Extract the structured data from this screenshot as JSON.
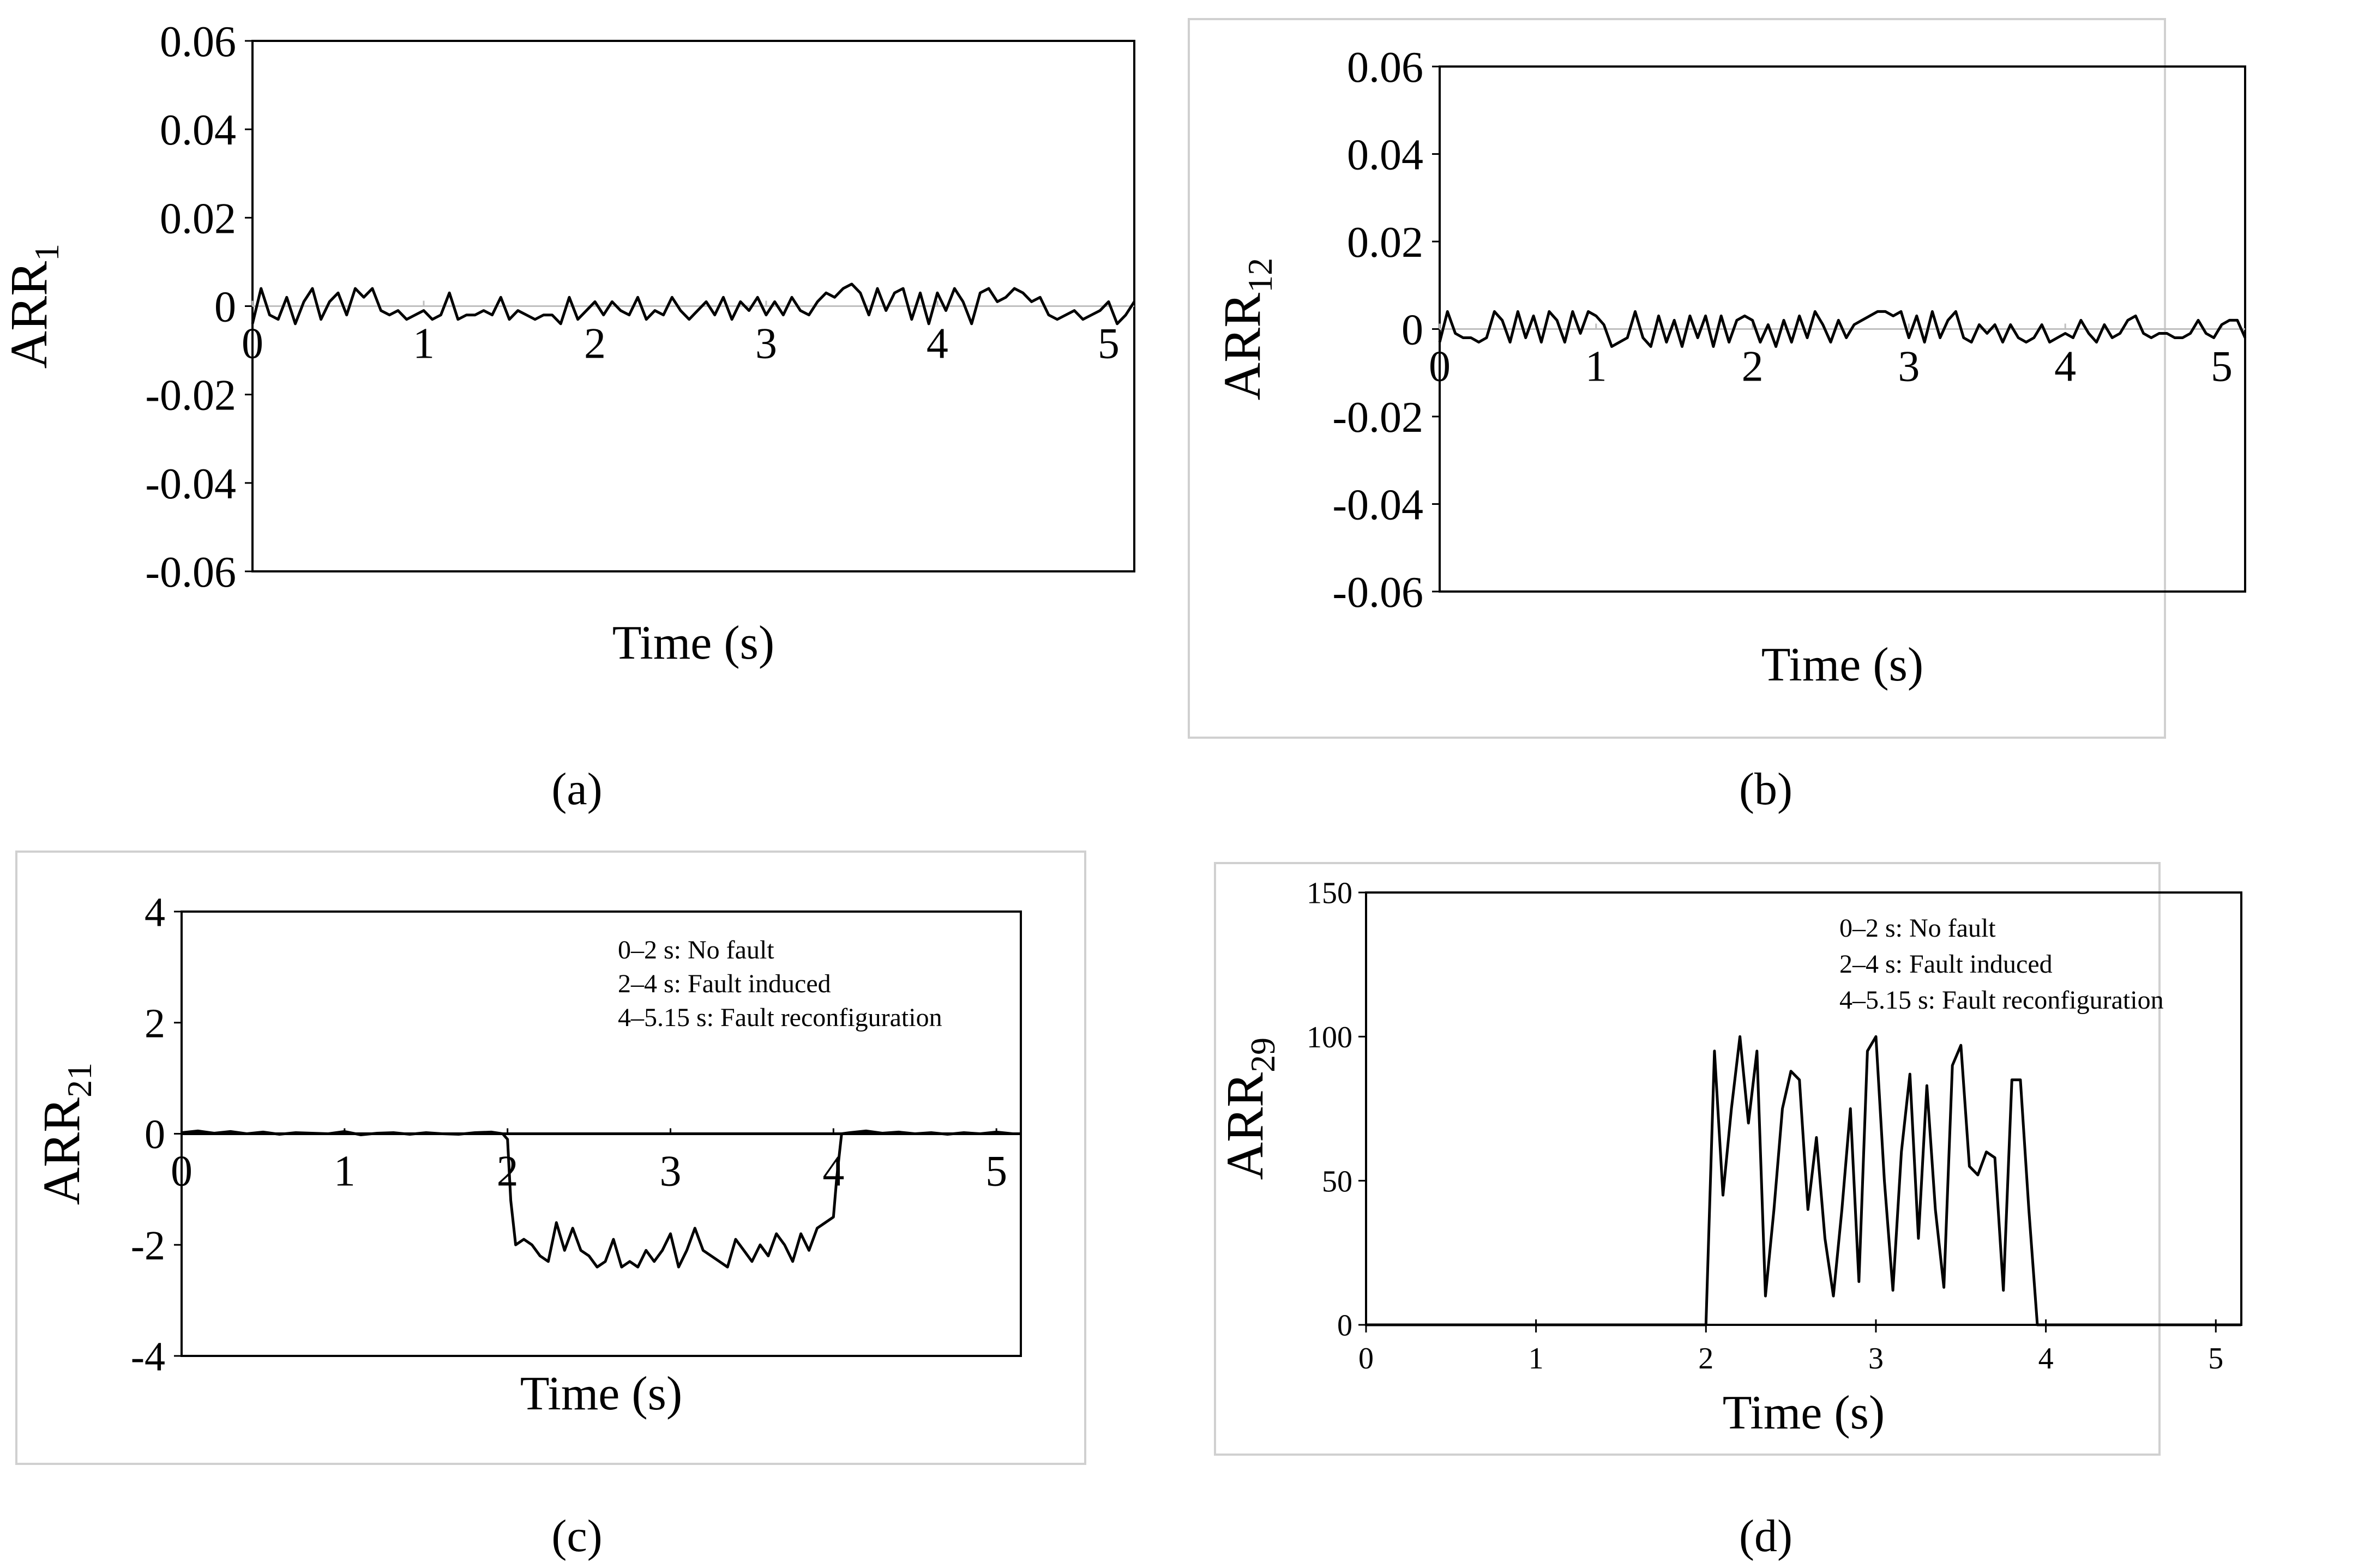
{
  "chart_data": [
    {
      "id": "a",
      "panel_label": "(a)",
      "type": "line",
      "ylabel_base": "ARR",
      "ylabel_sub": "1",
      "xlabel": "Time (s)",
      "xlim": [
        0,
        5.15
      ],
      "ylim": [
        -0.06,
        0.06
      ],
      "xticks": [
        "0",
        "1",
        "2",
        "3",
        "4",
        "5"
      ],
      "yticks": [
        "0.06",
        "0.04",
        "0.02",
        "0",
        "-0.02",
        "-0.04",
        "-0.06"
      ],
      "series": [
        {
          "name": "ARR1",
          "x": [
            0,
            0.05,
            0.1,
            0.15,
            0.2,
            0.25,
            0.3,
            0.35,
            0.4,
            0.45,
            0.5,
            0.55,
            0.6,
            0.65,
            0.7,
            0.75,
            0.8,
            0.85,
            0.9,
            0.95,
            1,
            1.05,
            1.1,
            1.15,
            1.2,
            1.25,
            1.3,
            1.35,
            1.4,
            1.45,
            1.5,
            1.55,
            1.6,
            1.65,
            1.7,
            1.75,
            1.8,
            1.85,
            1.9,
            1.95,
            2,
            2.05,
            2.1,
            2.15,
            2.2,
            2.25,
            2.3,
            2.35,
            2.4,
            2.45,
            2.5,
            2.55,
            2.6,
            2.65,
            2.7,
            2.75,
            2.8,
            2.85,
            2.9,
            2.95,
            3,
            3.05,
            3.1,
            3.15,
            3.2,
            3.25,
            3.3,
            3.35,
            3.4,
            3.45,
            3.5,
            3.55,
            3.6,
            3.65,
            3.7,
            3.75,
            3.8,
            3.85,
            3.9,
            3.95,
            4,
            4.05,
            4.1,
            4.15,
            4.2,
            4.25,
            4.3,
            4.35,
            4.4,
            4.45,
            4.5,
            4.55,
            4.6,
            4.65,
            4.7,
            4.75,
            4.8,
            4.85,
            4.9,
            4.95,
            5,
            5.05,
            5.1,
            5.15
          ],
          "values": [
            -0.004,
            0.004,
            -0.002,
            -0.003,
            0.002,
            -0.004,
            0.001,
            0.004,
            -0.003,
            0.001,
            0.003,
            -0.002,
            0.004,
            0.002,
            0.004,
            -0.001,
            -0.002,
            -0.001,
            -0.003,
            -0.002,
            -0.001,
            -0.003,
            -0.002,
            0.003,
            -0.003,
            -0.002,
            -0.002,
            -0.001,
            -0.002,
            0.002,
            -0.003,
            -0.001,
            -0.002,
            -0.003,
            -0.002,
            -0.002,
            -0.004,
            0.002,
            -0.003,
            -0.001,
            0.001,
            -0.002,
            0.001,
            -0.001,
            -0.002,
            0.002,
            -0.003,
            -0.001,
            -0.002,
            0.002,
            -0.001,
            -0.003,
            -0.001,
            0.001,
            -0.002,
            0.002,
            -0.003,
            0.001,
            -0.001,
            0.002,
            -0.002,
            0.001,
            -0.002,
            0.002,
            -0.001,
            -0.002,
            0.001,
            0.003,
            0.002,
            0.004,
            0.005,
            0.003,
            -0.002,
            0.004,
            -0.001,
            0.003,
            0.004,
            -0.003,
            0.003,
            -0.004,
            0.003,
            -0.001,
            0.004,
            0.001,
            -0.004,
            0.003,
            0.004,
            0.001,
            0.002,
            0.004,
            0.003,
            0.001,
            0.002,
            -0.002,
            -0.003,
            -0.002,
            -0.001,
            -0.003,
            -0.002,
            -0.001,
            0.001,
            -0.004,
            -0.002,
            0.001
          ]
        }
      ]
    },
    {
      "id": "b",
      "panel_label": "(b)",
      "type": "line",
      "ylabel_base": "ARR",
      "ylabel_sub": "12",
      "xlabel": "Time (s)",
      "xlim": [
        0,
        5.15
      ],
      "ylim": [
        -0.06,
        0.06
      ],
      "xticks": [
        "0",
        "1",
        "2",
        "3",
        "4",
        "5"
      ],
      "yticks": [
        "0.06",
        "0.04",
        "0.02",
        "0",
        "-0.02",
        "-0.04",
        "-0.06"
      ],
      "series": [
        {
          "name": "ARR12",
          "x": [
            0,
            0.05,
            0.1,
            0.15,
            0.2,
            0.25,
            0.3,
            0.35,
            0.4,
            0.45,
            0.5,
            0.55,
            0.6,
            0.65,
            0.7,
            0.75,
            0.8,
            0.85,
            0.9,
            0.95,
            1,
            1.05,
            1.1,
            1.15,
            1.2,
            1.25,
            1.3,
            1.35,
            1.4,
            1.45,
            1.5,
            1.55,
            1.6,
            1.65,
            1.7,
            1.75,
            1.8,
            1.85,
            1.9,
            1.95,
            2,
            2.05,
            2.1,
            2.15,
            2.2,
            2.25,
            2.3,
            2.35,
            2.4,
            2.45,
            2.5,
            2.55,
            2.6,
            2.65,
            2.7,
            2.75,
            2.8,
            2.85,
            2.9,
            2.95,
            3,
            3.05,
            3.1,
            3.15,
            3.2,
            3.25,
            3.3,
            3.35,
            3.4,
            3.45,
            3.5,
            3.55,
            3.6,
            3.65,
            3.7,
            3.75,
            3.8,
            3.85,
            3.9,
            3.95,
            4,
            4.05,
            4.1,
            4.15,
            4.2,
            4.25,
            4.3,
            4.35,
            4.4,
            4.45,
            4.5,
            4.55,
            4.6,
            4.65,
            4.7,
            4.75,
            4.8,
            4.85,
            4.9,
            4.95,
            5,
            5.05,
            5.1,
            5.15
          ],
          "values": [
            -0.003,
            0.004,
            -0.001,
            -0.002,
            -0.002,
            -0.003,
            -0.002,
            0.004,
            0.002,
            -0.003,
            0.004,
            -0.002,
            0.003,
            -0.003,
            0.004,
            0.002,
            -0.003,
            0.004,
            -0.001,
            0.004,
            0.003,
            0.001,
            -0.004,
            -0.003,
            -0.002,
            0.004,
            -0.002,
            -0.004,
            0.003,
            -0.003,
            0.002,
            -0.004,
            0.003,
            -0.002,
            0.003,
            -0.004,
            0.003,
            -0.003,
            0.002,
            0.003,
            0.002,
            -0.003,
            0.001,
            -0.004,
            0.002,
            -0.003,
            0.003,
            -0.002,
            0.004,
            0.001,
            -0.003,
            0.002,
            -0.002,
            0.001,
            0.002,
            0.003,
            0.004,
            0.004,
            0.003,
            0.004,
            -0.002,
            0.003,
            -0.003,
            0.004,
            -0.002,
            0.002,
            0.004,
            -0.002,
            -0.003,
            0.001,
            -0.001,
            0.001,
            -0.003,
            0.001,
            -0.002,
            -0.003,
            -0.002,
            0.001,
            -0.003,
            -0.002,
            -0.001,
            -0.002,
            0.002,
            -0.001,
            -0.003,
            0.001,
            -0.002,
            -0.001,
            0.002,
            0.003,
            -0.001,
            -0.002,
            -0.001,
            -0.001,
            -0.002,
            -0.002,
            -0.001,
            0.002,
            -0.001,
            -0.002,
            0.001,
            0.002,
            0.002,
            -0.002
          ]
        }
      ]
    },
    {
      "id": "c",
      "panel_label": "(c)",
      "type": "line",
      "ylabel_base": "ARR",
      "ylabel_sub": "21",
      "xlabel": "Time (s)",
      "xlim": [
        0,
        5.15
      ],
      "ylim": [
        -4,
        4
      ],
      "xticks": [
        "0",
        "1",
        "2",
        "3",
        "4",
        "5"
      ],
      "yticks": [
        "4",
        "2",
        "0",
        "-2",
        "-4"
      ],
      "legend": [
        "0–2 s: No fault",
        "2–4 s: Fault induced",
        "4–5.15 s: Fault reconfiguration"
      ],
      "series": [
        {
          "name": "ARR21",
          "x": [
            0,
            0.1,
            0.2,
            0.3,
            0.4,
            0.5,
            0.6,
            0.7,
            0.8,
            0.9,
            1,
            1.1,
            1.2,
            1.3,
            1.4,
            1.5,
            1.6,
            1.7,
            1.8,
            1.9,
            1.97,
            2,
            2.02,
            2.05,
            2.1,
            2.15,
            2.2,
            2.25,
            2.3,
            2.35,
            2.4,
            2.45,
            2.5,
            2.55,
            2.6,
            2.65,
            2.7,
            2.75,
            2.8,
            2.85,
            2.9,
            2.95,
            3,
            3.05,
            3.1,
            3.15,
            3.2,
            3.25,
            3.3,
            3.35,
            3.4,
            3.45,
            3.5,
            3.55,
            3.6,
            3.65,
            3.7,
            3.75,
            3.8,
            3.85,
            3.9,
            3.95,
            4,
            4.02,
            4.05,
            4.1,
            4.2,
            4.3,
            4.4,
            4.5,
            4.6,
            4.7,
            4.8,
            4.9,
            5,
            5.1,
            5.15
          ],
          "values": [
            0.02,
            0.05,
            0.01,
            0.04,
            0,
            0.03,
            -0.01,
            0.02,
            0.01,
            0,
            0.04,
            -0.02,
            0.01,
            0.02,
            -0.01,
            0.02,
            0,
            -0.01,
            0.02,
            0.03,
            0,
            -0.1,
            -1.2,
            -2.0,
            -1.9,
            -2.0,
            -2.2,
            -2.3,
            -1.6,
            -2.1,
            -1.7,
            -2.1,
            -2.2,
            -2.4,
            -2.3,
            -1.9,
            -2.4,
            -2.3,
            -2.4,
            -2.1,
            -2.3,
            -2.1,
            -1.8,
            -2.4,
            -2.1,
            -1.7,
            -2.1,
            -2.2,
            -2.3,
            -2.4,
            -1.9,
            -2.1,
            -2.3,
            -2.0,
            -2.2,
            -1.8,
            -2.0,
            -2.3,
            -1.8,
            -2.1,
            -1.7,
            -1.6,
            -1.5,
            -0.8,
            0.0,
            0.02,
            0.05,
            0.01,
            0.03,
            0.0,
            0.02,
            -0.01,
            0.02,
            0.0,
            0.03,
            0.0,
            0.0
          ]
        }
      ]
    },
    {
      "id": "d",
      "panel_label": "(d)",
      "type": "line",
      "ylabel_base": "ARR",
      "ylabel_sub": "29",
      "xlabel": "Time (s)",
      "xlim": [
        0,
        5.15
      ],
      "ylim": [
        0,
        150
      ],
      "xticks": [
        "0",
        "1",
        "2",
        "3",
        "4",
        "5"
      ],
      "yticks": [
        "150",
        "100",
        "50",
        "0"
      ],
      "legend": [
        "0–2 s: No fault",
        "2–4 s: Fault induced",
        "4–5.15 s: Fault reconfiguration"
      ],
      "series": [
        {
          "name": "ARR29",
          "x": [
            0,
            1,
            2,
            2.05,
            2.1,
            2.15,
            2.2,
            2.25,
            2.3,
            2.35,
            2.4,
            2.45,
            2.5,
            2.55,
            2.6,
            2.65,
            2.7,
            2.75,
            2.8,
            2.85,
            2.9,
            2.95,
            3,
            3.05,
            3.1,
            3.15,
            3.2,
            3.25,
            3.3,
            3.35,
            3.4,
            3.45,
            3.5,
            3.55,
            3.6,
            3.65,
            3.7,
            3.75,
            3.8,
            3.85,
            3.9,
            3.95,
            4,
            4.05,
            4.1,
            5,
            5.15
          ],
          "values": [
            0,
            0,
            0,
            95,
            45,
            75,
            100,
            70,
            95,
            10,
            40,
            75,
            88,
            85,
            40,
            65,
            30,
            10,
            40,
            75,
            15,
            95,
            100,
            50,
            12,
            60,
            87,
            30,
            83,
            40,
            13,
            90,
            97,
            55,
            52,
            60,
            58,
            12,
            85,
            85,
            40,
            0,
            0,
            0,
            0,
            0,
            0
          ]
        }
      ]
    }
  ]
}
